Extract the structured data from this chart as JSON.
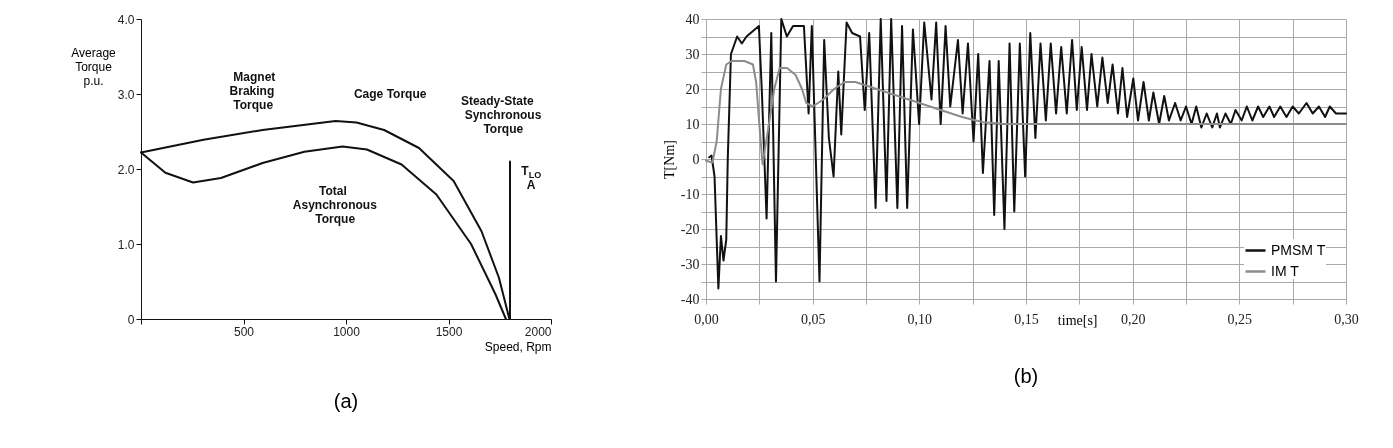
{
  "chart_data": [
    {
      "type": "line",
      "title": "(a)",
      "xlabel": "Speed, Rpm",
      "ylabel": "Average\nTorque\np.u.",
      "xlim": [
        0,
        2000
      ],
      "xticks": [
        {
          "value": 0,
          "label": null
        },
        500,
        1000,
        1500,
        2000
      ],
      "ylim": [
        0,
        4
      ],
      "yticks": [
        0,
        {
          "value": 1,
          "label": "1.0"
        },
        {
          "value": 2,
          "label": "2.0"
        },
        {
          "value": 3,
          "label": "3.0"
        },
        {
          "value": 4,
          "label": "4.0"
        }
      ],
      "grid": false,
      "legend": false,
      "series": [
        {
          "color": "#111111",
          "x": [
            0,
            305,
            593,
            949,
            1051,
            1186,
            1356,
            1525,
            1661,
            1746,
            1797
          ],
          "values": [
            2.22,
            2.39,
            2.52,
            2.64,
            2.62,
            2.52,
            2.28,
            1.84,
            1.17,
            0.55,
            0
          ]
        },
        {
          "color": "#111111",
          "x": [
            0,
            119,
            254,
            390,
            593,
            797,
            983,
            1102,
            1271,
            1441,
            1610,
            1729,
            1780
          ],
          "values": [
            2.22,
            1.95,
            1.82,
            1.88,
            2.08,
            2.23,
            2.3,
            2.26,
            2.06,
            1.66,
            1.0,
            0.33,
            0
          ]
        },
        {
          "color": "#111111",
          "x": [
            1800,
            1800
          ],
          "values": [
            0,
            2.1
          ]
        }
      ],
      "annotations": [
        "Magnet\nBraking\nTorque",
        "Cage Torque",
        "Steady-State\nSynchronous\nTorque",
        "Total\nAsynchronous\nTorque",
        "T$_{LO}$\nA"
      ]
    },
    {
      "type": "line",
      "title": "(b)",
      "xlabel": "time[s]",
      "ylabel": "T[Nm]",
      "xlim": [
        0,
        0.3
      ],
      "xticks": [
        {
          "value": 0,
          "label": "0,00"
        },
        {
          "value": 0.025,
          "label": null
        },
        {
          "value": 0.05,
          "label": "0,05"
        },
        {
          "value": 0.075,
          "label": null
        },
        {
          "value": 0.1,
          "label": "0,10"
        },
        {
          "value": 0.125,
          "label": null
        },
        {
          "value": 0.15,
          "label": "0,15"
        },
        {
          "value": 0.175,
          "label": null
        },
        {
          "value": 0.2,
          "label": "0,20"
        },
        {
          "value": 0.225,
          "label": null
        },
        {
          "value": 0.25,
          "label": "0,25"
        },
        {
          "value": 0.275,
          "label": null
        },
        {
          "value": 0.3,
          "label": "0,30"
        }
      ],
      "ylim": [
        -40,
        40
      ],
      "yticks": [
        -40,
        {
          "value": -35,
          "label": null
        },
        -30,
        {
          "value": -25,
          "label": null
        },
        -20,
        {
          "value": -15,
          "label": null
        },
        -10,
        {
          "value": -5,
          "label": null
        },
        0,
        {
          "value": 5,
          "label": null
        },
        10,
        {
          "value": 15,
          "label": null
        },
        20,
        {
          "value": 25,
          "label": null
        },
        30,
        {
          "value": 35,
          "label": null
        },
        40
      ],
      "grid": true,
      "legend": "bottom right",
      "series": [
        {
          "name": "PMSM T",
          "color": "#111111",
          "x": [
            0.0015,
            0.0026,
            0.004,
            0.0058,
            0.007,
            0.0082,
            0.0095,
            0.0102,
            0.0117,
            0.0146,
            0.0168,
            0.019,
            0.0248,
            0.0262,
            0.0284,
            0.0306,
            0.0328,
            0.0353,
            0.0379,
            0.0408,
            0.0459,
            0.0481,
            0.0496,
            0.0532,
            0.0554,
            0.0576,
            0.0598,
            0.062,
            0.0634,
            0.0659,
            0.0685,
            0.0722,
            0.0744,
            0.0765,
            0.0795,
            0.0819,
            0.0846,
            0.0868,
            0.0897,
            0.0919,
            0.0943,
            0.097,
            0.0999,
            0.1023,
            0.1057,
            0.1079,
            0.11,
            0.1123,
            0.1145,
            0.1181,
            0.1203,
            0.1228,
            0.1254,
            0.1276,
            0.1298,
            0.1329,
            0.1351,
            0.1372,
            0.1399,
            0.1423,
            0.1445,
            0.1471,
            0.1496,
            0.152,
            0.1544,
            0.1568,
            0.1593,
            0.1616,
            0.1641,
            0.1665,
            0.1691,
            0.1716,
            0.1738,
            0.1761,
            0.1786,
            0.1807,
            0.1834,
            0.1858,
            0.1883,
            0.1906,
            0.1931,
            0.1952,
            0.1974,
            0.2003,
            0.2025,
            0.2051,
            0.2076,
            0.2097,
            0.2124,
            0.2148,
            0.217,
            0.2199,
            0.2225,
            0.225,
            0.2276,
            0.2298,
            0.2322,
            0.2347,
            0.2373,
            0.2395,
            0.2409,
            0.2435,
            0.246,
            0.2482,
            0.2511,
            0.2535,
            0.2561,
            0.2588,
            0.2612,
            0.2641,
            0.2663,
            0.2692,
            0.2721,
            0.275,
            0.2779,
            0.2815,
            0.2844,
            0.2873,
            0.2902,
            0.2924,
            0.2953,
            0.3
          ],
          "values": [
            0.5,
            1,
            -5,
            -37,
            -22,
            -29,
            -23,
            0,
            30,
            35,
            33,
            35,
            38,
            19,
            -17,
            36,
            -35,
            40,
            35,
            38,
            38,
            13,
            38,
            -35,
            34,
            6,
            -5,
            25,
            7,
            39,
            36,
            35,
            14,
            36,
            -14,
            40,
            -12,
            40,
            -14,
            38,
            -14,
            37,
            10,
            39,
            17,
            39,
            10,
            38,
            15,
            34,
            13,
            33,
            5,
            30,
            -4,
            28,
            -16,
            28,
            -20,
            33,
            -15,
            33,
            -5,
            36,
            6,
            33,
            11,
            33,
            13,
            32,
            13,
            34,
            14,
            32,
            14,
            30,
            15,
            29,
            16,
            27,
            13,
            26,
            12,
            23,
            11,
            22,
            11,
            19,
            10,
            18,
            11,
            16,
            11,
            15,
            10,
            15,
            9,
            13,
            9,
            13,
            9,
            13,
            10,
            14,
            11,
            15,
            11,
            15,
            12,
            15,
            12,
            15,
            12,
            15,
            13,
            16,
            13,
            15,
            12,
            15,
            13,
            13
          ]
        },
        {
          "name": "IM T",
          "color": "#8c8c8c",
          "x": [
            0,
            0.003,
            0.005,
            0.007,
            0.0095,
            0.012,
            0.018,
            0.022,
            0.0235,
            0.025,
            0.0265,
            0.029,
            0.032,
            0.0345,
            0.038,
            0.042,
            0.045,
            0.047,
            0.05,
            0.055,
            0.06,
            0.065,
            0.07,
            0.08,
            0.09,
            0.1,
            0.11,
            0.12,
            0.13,
            0.14,
            0.15,
            0.2,
            0.25,
            0.3
          ],
          "values": [
            -0.5,
            -1,
            5,
            20,
            27,
            28,
            28,
            27,
            22,
            10,
            -1.5,
            8,
            20,
            26,
            26,
            24,
            20,
            16,
            15,
            17,
            20,
            22,
            22,
            20,
            18,
            16,
            14,
            12,
            10.5,
            10,
            10,
            10,
            10,
            10
          ]
        }
      ]
    }
  ]
}
